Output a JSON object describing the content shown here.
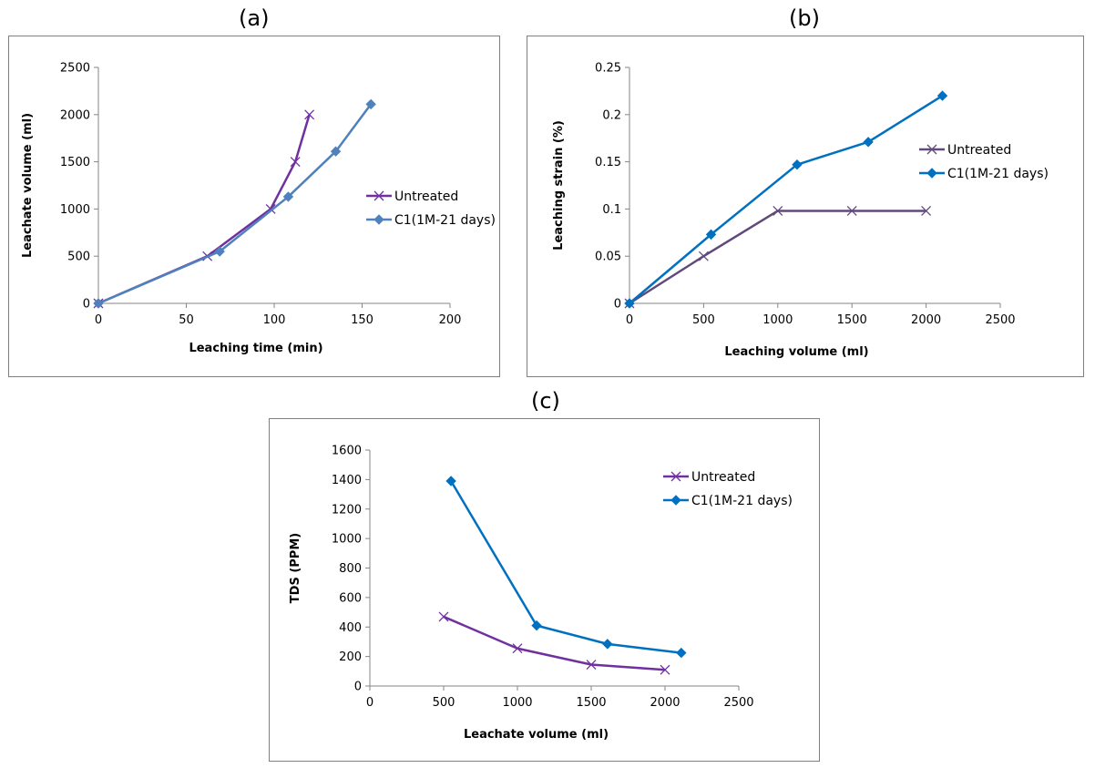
{
  "chart_data": [
    {
      "id": "a",
      "panel_label": "(a)",
      "type": "line",
      "xlabel": "Leaching time (min)",
      "ylabel": "Leachate volume (ml)",
      "xlim": [
        0,
        200
      ],
      "ylim": [
        0,
        2500
      ],
      "xticks": [
        0,
        50,
        100,
        150,
        200
      ],
      "yticks": [
        0,
        500,
        1000,
        1500,
        2000,
        2500
      ],
      "grid": false,
      "legend_position": "right",
      "series": [
        {
          "name": "Untreated",
          "color": "#7030a0",
          "marker": "x",
          "x": [
            0,
            62,
            98,
            112,
            120
          ],
          "y": [
            0,
            500,
            1000,
            1500,
            2000
          ]
        },
        {
          "name": "C1(1M-21 days)",
          "color": "#4f81bd",
          "marker": "diamond",
          "x": [
            0,
            69,
            108,
            135,
            155
          ],
          "y": [
            0,
            550,
            1130,
            1610,
            2110
          ]
        }
      ]
    },
    {
      "id": "b",
      "panel_label": "(b)",
      "type": "line",
      "xlabel": "Leaching volume (ml)",
      "ylabel": "Leaching strain (%)",
      "xlim": [
        0,
        2500
      ],
      "ylim": [
        0,
        0.25
      ],
      "xticks": [
        0,
        500,
        1000,
        1500,
        2000,
        2500
      ],
      "yticks": [
        0,
        0.05,
        0.1,
        0.15,
        0.2,
        0.25
      ],
      "grid": false,
      "legend_position": "right",
      "series": [
        {
          "name": "Untreated",
          "color": "#604a7b",
          "marker": "x",
          "x": [
            0,
            500,
            1000,
            1500,
            2000
          ],
          "y": [
            0,
            0.05,
            0.098,
            0.098,
            0.098
          ]
        },
        {
          "name": "C1(1M-21 days)",
          "color": "#0070c0",
          "marker": "diamond",
          "x": [
            0,
            550,
            1130,
            1610,
            2110
          ],
          "y": [
            0,
            0.073,
            0.147,
            0.171,
            0.22
          ]
        }
      ]
    },
    {
      "id": "c",
      "panel_label": "(c)",
      "type": "line",
      "xlabel": "Leachate volume (ml)",
      "ylabel": "TDS (PPM)",
      "xlim": [
        0,
        2500
      ],
      "ylim": [
        0,
        1600
      ],
      "xticks": [
        0,
        500,
        1000,
        1500,
        2000,
        2500
      ],
      "yticks": [
        0,
        200,
        400,
        600,
        800,
        1000,
        1200,
        1400,
        1600
      ],
      "grid": false,
      "legend_position": "top-right",
      "series": [
        {
          "name": "Untreated",
          "color": "#7030a0",
          "marker": "x",
          "x": [
            500,
            1000,
            1500,
            2000
          ],
          "y": [
            470,
            255,
            145,
            110
          ]
        },
        {
          "name": "C1(1M-21 days)",
          "color": "#0070c0",
          "marker": "diamond",
          "x": [
            550,
            1130,
            1610,
            2110
          ],
          "y": [
            1390,
            410,
            285,
            225
          ]
        }
      ]
    }
  ]
}
